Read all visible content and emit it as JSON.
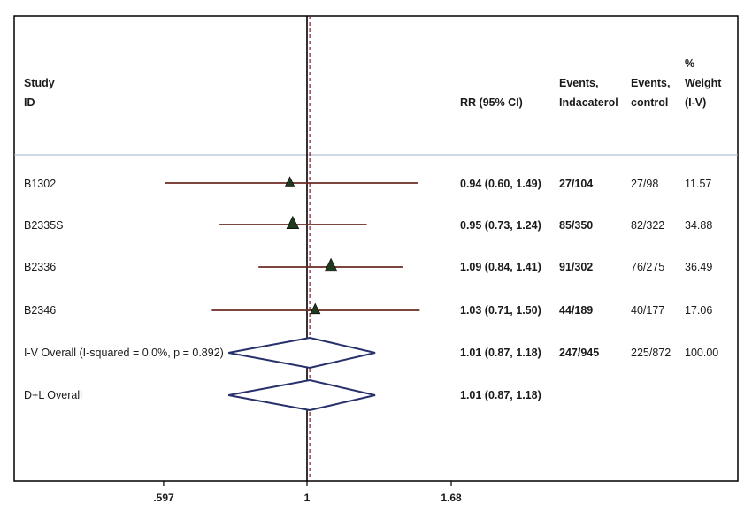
{
  "headers": {
    "study": "Study",
    "id": "ID",
    "rr": "RR (95% CI)",
    "events_ind_1": "Events,",
    "events_ind_2": "Indacaterol",
    "events_ctrl_1": "Events,",
    "events_ctrl_2": "control",
    "weight_1": "%",
    "weight_2": "Weight",
    "weight_3": "(I-V)"
  },
  "rows": [
    {
      "id": "B1302",
      "rr_text": "0.94 (0.60, 1.49)",
      "events_ind": "27/104",
      "events_ctrl": "27/98",
      "weight": "11.57"
    },
    {
      "id": "B2335S",
      "rr_text": "0.95 (0.73, 1.24)",
      "events_ind": "85/350",
      "events_ctrl": "82/322",
      "weight": "34.88"
    },
    {
      "id": "B2336",
      "rr_text": "1.09 (0.84, 1.41)",
      "events_ind": "91/302",
      "events_ctrl": "76/275",
      "weight": "36.49"
    },
    {
      "id": "B2346",
      "rr_text": "1.03 (0.71, 1.50)",
      "events_ind": "44/189",
      "events_ctrl": "40/177",
      "weight": "17.06"
    },
    {
      "id": "I-V Overall  (I-squared = 0.0%, p = 0.892)",
      "rr_text": "1.01 (0.87, 1.18)",
      "events_ind": "247/945",
      "events_ctrl": "225/872",
      "weight": "100.00"
    },
    {
      "id": "D+L Overall",
      "rr_text": "1.01 (0.87, 1.18)",
      "events_ind": "",
      "events_ctrl": "",
      "weight": ""
    }
  ],
  "axis": {
    "ticks": [
      ".597",
      "1",
      "1.68"
    ]
  },
  "chart_data": {
    "type": "forest",
    "scale": "log",
    "axis_ticks": [
      0.597,
      1,
      1.68
    ],
    "null_line": 1,
    "overall_line": 1.01,
    "studies": [
      {
        "id": "B1302",
        "rr": 0.94,
        "lo": 0.6,
        "hi": 1.49,
        "weight": 11.57
      },
      {
        "id": "B2335S",
        "rr": 0.95,
        "lo": 0.73,
        "hi": 1.24,
        "weight": 34.88
      },
      {
        "id": "B2336",
        "rr": 1.09,
        "lo": 0.84,
        "hi": 1.41,
        "weight": 36.49
      },
      {
        "id": "B2346",
        "rr": 1.03,
        "lo": 0.71,
        "hi": 1.5,
        "weight": 17.06
      }
    ],
    "overall": [
      {
        "id": "I-V Overall",
        "rr": 1.01,
        "lo": 0.87,
        "hi": 1.18
      },
      {
        "id": "D+L Overall",
        "rr": 1.01,
        "lo": 0.87,
        "hi": 1.18
      }
    ],
    "colors": {
      "ci_line": "#6b2a23",
      "marker": "#1f3a1f",
      "diamond": "#27306b",
      "ref_dash": "#8b1c2b",
      "header_sep": "#9fb3c8"
    }
  }
}
